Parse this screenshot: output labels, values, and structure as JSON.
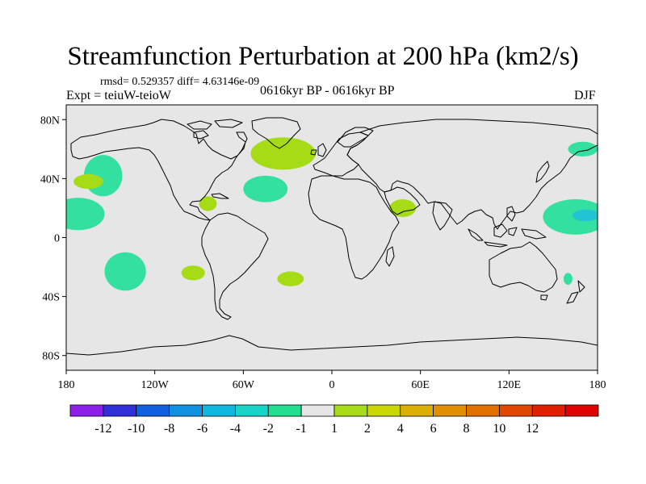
{
  "title": "Streamfunction Perturbation at 200 hPa (km2/s)",
  "stats": "rmsd= 0.529357 diff= 4.63146e-09",
  "experiment": "Expt = teiuW-teioW",
  "period": "0616kyr BP - 0616kyr BP",
  "season": "DJF",
  "map": {
    "ocean_color": "#e6e6e6",
    "lat_ticks": [
      {
        "value": 80,
        "label": "80N"
      },
      {
        "value": 40,
        "label": "40N"
      },
      {
        "value": 0,
        "label": "0"
      },
      {
        "value": -40,
        "label": "40S"
      },
      {
        "value": -80,
        "label": "80S"
      }
    ],
    "lon_ticks": [
      {
        "value": -180,
        "label": "180"
      },
      {
        "value": -120,
        "label": "120W"
      },
      {
        "value": -60,
        "label": "60W"
      },
      {
        "value": 0,
        "label": "0"
      },
      {
        "value": 60,
        "label": "60E"
      },
      {
        "value": 120,
        "label": "120E"
      },
      {
        "value": 180,
        "label": "180"
      }
    ],
    "anomalies": [
      {
        "name": "anomaly-northeast-pacific",
        "lon": -155,
        "lat": 42,
        "rlon": 13,
        "rlat": 14,
        "color": "#33e0a0"
      },
      {
        "name": "anomaly-north-pacific-small",
        "lon": -165,
        "lat": 38,
        "rlon": 10,
        "rlat": 5,
        "color": "#a6dc16"
      },
      {
        "name": "anomaly-east-pacific",
        "lon": -172,
        "lat": 16,
        "rlon": 18,
        "rlat": 11,
        "color": "#33e0a0"
      },
      {
        "name": "anomaly-caribbean",
        "lon": -84,
        "lat": 23,
        "rlon": 6,
        "rlat": 5,
        "color": "#a6dc16"
      },
      {
        "name": "anomaly-atlantic-subtropic",
        "lon": -45,
        "lat": 33,
        "rlon": 15,
        "rlat": 9,
        "color": "#33e0a0"
      },
      {
        "name": "anomaly-north-atlantic",
        "lon": -33,
        "lat": 57,
        "rlon": 22,
        "rlat": 11,
        "color": "#a6dc16"
      },
      {
        "name": "anomaly-south-pacific",
        "lon": -140,
        "lat": -23,
        "rlon": 14,
        "rlat": 13,
        "color": "#33e0a0"
      },
      {
        "name": "anomaly-south-america-west",
        "lon": -94,
        "lat": -24,
        "rlon": 8,
        "rlat": 5,
        "color": "#a6dc16"
      },
      {
        "name": "anomaly-south-atlantic",
        "lon": -28,
        "lat": -28,
        "rlon": 9,
        "rlat": 5,
        "color": "#a6dc16"
      },
      {
        "name": "anomaly-arabia",
        "lon": 48,
        "lat": 20,
        "rlon": 9,
        "rlat": 6,
        "color": "#a6dc16"
      },
      {
        "name": "anomaly-north-pacific-east-asia",
        "lon": 170,
        "lat": 60,
        "rlon": 10,
        "rlat": 5,
        "color": "#33e0a0"
      },
      {
        "name": "anomaly-west-pacific-tropics",
        "lon": 165,
        "lat": 14,
        "rlon": 22,
        "rlat": 12,
        "color": "#33e0a0"
      },
      {
        "name": "anomaly-west-pacific-core",
        "lon": 172,
        "lat": 15,
        "rlon": 9,
        "rlat": 4,
        "color": "#22c4d4"
      },
      {
        "name": "anomaly-coral-sea",
        "lon": 160,
        "lat": -28,
        "rlon": 3,
        "rlat": 4,
        "color": "#33e0a0"
      }
    ]
  },
  "colorbar": {
    "colors": [
      "#8c20e8",
      "#3030d8",
      "#1060e0",
      "#1090e0",
      "#10b8e0",
      "#18d4c8",
      "#20e090",
      "#e6e6e6",
      "#a6dc16",
      "#c8d800",
      "#dcb000",
      "#e09000",
      "#e07000",
      "#e04800",
      "#e02000",
      "#e00000"
    ],
    "labels": [
      "-12",
      "-10",
      "-8",
      "-6",
      "-4",
      "-2",
      "-1",
      "1",
      "2",
      "4",
      "6",
      "8",
      "10",
      "12"
    ]
  }
}
